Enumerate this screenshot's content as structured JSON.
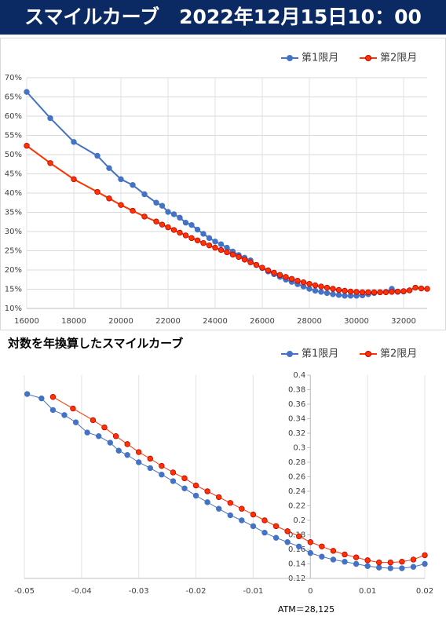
{
  "header": {
    "title": "スマイルカーブ　2022年12月15日10：00"
  },
  "chart_data": [
    {
      "type": "line",
      "grid": "both",
      "legend": "top-right",
      "xlim": [
        16000,
        33000
      ],
      "xticks": [
        16000,
        18000,
        20000,
        22000,
        24000,
        26000,
        28000,
        30000,
        32000
      ],
      "ylim": [
        10,
        70
      ],
      "yticks": [
        {
          "value": 10,
          "label": "10%"
        },
        {
          "value": 15,
          "label": "15%"
        },
        {
          "value": 20,
          "label": "20%"
        },
        {
          "value": 25,
          "label": "25%"
        },
        {
          "value": 30,
          "label": "30%"
        },
        {
          "value": 35,
          "label": "35%"
        },
        {
          "value": 40,
          "label": "40%"
        },
        {
          "value": 45,
          "label": "45%"
        },
        {
          "value": 50,
          "label": "50%"
        },
        {
          "value": 55,
          "label": "55%"
        },
        {
          "value": 60,
          "label": "60%"
        },
        {
          "value": 65,
          "label": "65%"
        },
        {
          "value": 70,
          "label": "70%"
        }
      ],
      "series": [
        {
          "name": "第1限月",
          "color": "#4472c4",
          "x": [
            16000,
            17000,
            18000,
            19000,
            19500,
            20000,
            20500,
            21000,
            21500,
            21750,
            22000,
            22250,
            22500,
            22750,
            23000,
            23250,
            23500,
            23750,
            24000,
            24250,
            24500,
            24750,
            25000,
            25250,
            25500,
            25750,
            26000,
            26250,
            26500,
            26750,
            27000,
            27250,
            27500,
            27750,
            28000,
            28250,
            28500,
            28750,
            29000,
            29250,
            29500,
            29750,
            30000,
            30250,
            30500,
            30750,
            31000,
            31250,
            31500,
            31750,
            32000
          ],
          "values": [
            66.3,
            59.5,
            53.3,
            49.7,
            46.5,
            43.6,
            42.1,
            39.7,
            37.5,
            36.7,
            35.1,
            34.5,
            33.6,
            32.3,
            31.7,
            30.5,
            29.4,
            28.3,
            27.4,
            26.7,
            25.8,
            24.8,
            23.9,
            23.2,
            22.5,
            21.3,
            20.5,
            19.6,
            18.9,
            18.2,
            17.5,
            16.9,
            16.3,
            15.7,
            15.1,
            14.6,
            14.3,
            14.0,
            13.7,
            13.5,
            13.3,
            13.3,
            13.3,
            13.4,
            13.7,
            14.0,
            14.2,
            14.3,
            15.1,
            14.3,
            14.4
          ]
        },
        {
          "name": "第2限月",
          "color": "#ff3300",
          "x": [
            16000,
            17000,
            18000,
            19000,
            19500,
            20000,
            20500,
            21000,
            21500,
            21750,
            22000,
            22250,
            22500,
            22750,
            23000,
            23250,
            23500,
            23750,
            24000,
            24250,
            24500,
            24750,
            25000,
            25250,
            25500,
            25750,
            26000,
            26250,
            26500,
            26750,
            27000,
            27250,
            27500,
            27750,
            28000,
            28250,
            28500,
            28750,
            29000,
            29250,
            29500,
            29750,
            30000,
            30250,
            30500,
            30750,
            31000,
            31250,
            31500,
            31750,
            32000,
            32250,
            32500,
            32750,
            33000
          ],
          "values": [
            52.3,
            47.8,
            43.6,
            40.3,
            38.6,
            36.9,
            35.4,
            33.9,
            32.6,
            31.8,
            31.1,
            30.4,
            29.7,
            29.0,
            28.3,
            27.7,
            27.0,
            26.4,
            25.8,
            25.2,
            24.6,
            24.0,
            23.4,
            22.7,
            22.0,
            21.3,
            20.6,
            19.9,
            19.3,
            18.7,
            18.2,
            17.7,
            17.2,
            16.8,
            16.4,
            16.0,
            15.7,
            15.4,
            15.1,
            14.8,
            14.6,
            14.4,
            14.3,
            14.2,
            14.2,
            14.2,
            14.2,
            14.2,
            14.3,
            14.4,
            14.5,
            14.7,
            15.4,
            15.2,
            15.1
          ]
        }
      ]
    },
    {
      "type": "line",
      "grid": "x",
      "legend": "top-right",
      "title": "対数を年換算したスマイルカーブ",
      "annotation": "ATM＝28,125",
      "xlim": [
        -0.05,
        0.02
      ],
      "xticks": [
        -0.05,
        -0.04,
        -0.03,
        -0.02,
        -0.01,
        0,
        0.01,
        0.02
      ],
      "ylim": [
        0.12,
        0.4
      ],
      "yticks": [
        0.12,
        0.14,
        0.16,
        0.18,
        0.2,
        0.22,
        0.24,
        0.26,
        0.28,
        0.3,
        0.32,
        0.34,
        0.36,
        0.38,
        0.4
      ],
      "series": [
        {
          "name": "第1限月",
          "color": "#4472c4",
          "x": [
            -0.0495,
            -0.047,
            -0.045,
            -0.043,
            -0.041,
            -0.039,
            -0.037,
            -0.035,
            -0.0335,
            -0.032,
            -0.03,
            -0.028,
            -0.026,
            -0.024,
            -0.022,
            -0.02,
            -0.018,
            -0.016,
            -0.014,
            -0.012,
            -0.01,
            -0.008,
            -0.006,
            -0.004,
            -0.002,
            0,
            0.002,
            0.004,
            0.006,
            0.008,
            0.01,
            0.012,
            0.014,
            0.016,
            0.018,
            0.02
          ],
          "values": [
            0.374,
            0.368,
            0.352,
            0.345,
            0.335,
            0.321,
            0.316,
            0.307,
            0.296,
            0.29,
            0.28,
            0.272,
            0.263,
            0.254,
            0.244,
            0.234,
            0.225,
            0.216,
            0.207,
            0.2,
            0.192,
            0.183,
            0.176,
            0.17,
            0.164,
            0.155,
            0.15,
            0.146,
            0.143,
            0.14,
            0.137,
            0.135,
            0.134,
            0.134,
            0.136,
            0.14
          ]
        },
        {
          "name": "第2限月",
          "color": "#ff3300",
          "x": [
            -0.045,
            -0.0415,
            -0.038,
            -0.036,
            -0.034,
            -0.032,
            -0.03,
            -0.028,
            -0.026,
            -0.024,
            -0.022,
            -0.02,
            -0.018,
            -0.016,
            -0.014,
            -0.012,
            -0.01,
            -0.008,
            -0.006,
            -0.004,
            -0.002,
            0,
            0.002,
            0.004,
            0.006,
            0.008,
            0.01,
            0.012,
            0.014,
            0.016,
            0.018,
            0.02
          ],
          "values": [
            0.37,
            0.354,
            0.338,
            0.328,
            0.316,
            0.305,
            0.294,
            0.285,
            0.275,
            0.266,
            0.258,
            0.248,
            0.24,
            0.232,
            0.224,
            0.216,
            0.208,
            0.2,
            0.192,
            0.185,
            0.178,
            0.17,
            0.164,
            0.158,
            0.153,
            0.149,
            0.145,
            0.142,
            0.142,
            0.143,
            0.146,
            0.152
          ]
        }
      ]
    }
  ]
}
